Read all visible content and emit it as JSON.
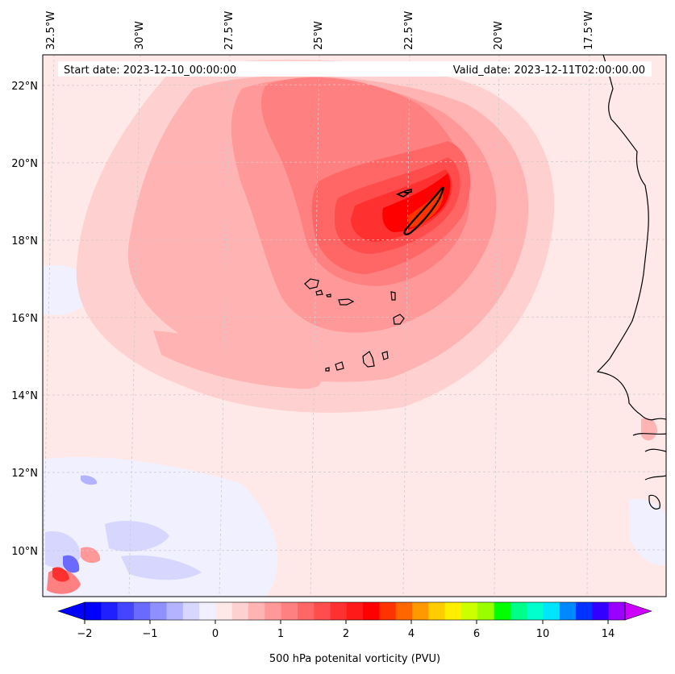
{
  "map": {
    "start_label": "Start date: 2023-12-10_00:00:00",
    "valid_label": "Valid_date: 2023-12-11T02:00:00.00",
    "lon_labels": [
      "32.5°W",
      "30°W",
      "27.5°W",
      "25°W",
      "22.5°W",
      "20°W",
      "17.5°W"
    ],
    "lat_labels": [
      "22°N",
      "20°N",
      "18°N",
      "16°N",
      "14°N",
      "12°N",
      "10°N"
    ]
  },
  "colorbar": {
    "label": "500 hPa potenital vorticity (PVU)",
    "tick_labels": [
      "−2",
      "−1",
      "0",
      "1",
      "2",
      "4",
      "6",
      "10",
      "14"
    ],
    "colors": [
      "#0000ff",
      "#2020ff",
      "#4545ff",
      "#6a6aff",
      "#8f8fff",
      "#b3b3ff",
      "#d6d6ff",
      "#f0f0ff",
      "#ffe8e8",
      "#ffd0d0",
      "#ffb3b3",
      "#ff9999",
      "#ff8080",
      "#ff6666",
      "#ff4d4d",
      "#ff3030",
      "#ff1a1a",
      "#ff0000",
      "#ff3300",
      "#ff6600",
      "#ff9900",
      "#ffcc00",
      "#ffee00",
      "#ccff00",
      "#99ff00",
      "#00ff00",
      "#00ff88",
      "#00ffcc",
      "#00e5ff",
      "#0088ff",
      "#0033ff",
      "#3300ff",
      "#9900ff"
    ],
    "extend_min_color": "#0000ff",
    "extend_max_color": "#cc00ff"
  }
}
